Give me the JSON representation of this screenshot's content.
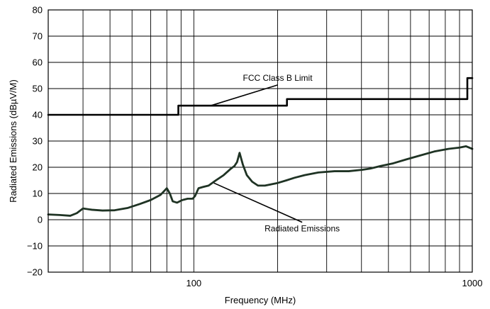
{
  "chart_data": {
    "type": "line",
    "xlabel": "Frequency (MHz)",
    "ylabel": "Radiated Emissions (dBµV/M)",
    "x_scale": "log",
    "xlim": [
      30,
      1000
    ],
    "ylim": [
      -20,
      80
    ],
    "x_tick_labels": [
      {
        "value": 100,
        "label": "100"
      },
      {
        "value": 1000,
        "label": "1000"
      }
    ],
    "x_minor_gridlines": [
      40,
      50,
      60,
      70,
      80,
      90,
      200,
      300,
      400,
      500,
      600,
      700,
      800,
      900
    ],
    "y_ticks": [
      -20,
      -10,
      0,
      10,
      20,
      30,
      40,
      50,
      60,
      70,
      80
    ],
    "grid": true,
    "series": [
      {
        "name": "FCC Class B Limit",
        "color": "#000000",
        "step": true,
        "x": [
          30,
          88,
          88,
          216,
          216,
          960,
          960,
          1000
        ],
        "y": [
          40,
          40,
          43.5,
          43.5,
          46,
          46,
          54,
          54
        ]
      },
      {
        "name": "Radiated Emissions",
        "color": "#1f3324",
        "x": [
          30,
          33,
          36,
          38,
          40,
          43,
          47,
          52,
          58,
          64,
          70,
          76,
          80,
          82,
          84,
          87,
          91,
          95,
          99,
          101,
          104,
          108,
          113,
          120,
          128,
          136,
          140,
          143,
          146,
          150,
          155,
          162,
          170,
          180,
          190,
          200,
          215,
          230,
          250,
          280,
          320,
          360,
          400,
          430,
          470,
          520,
          580,
          650,
          730,
          820,
          900,
          950,
          1000
        ],
        "y": [
          2,
          1.8,
          1.5,
          2.5,
          4.3,
          3.8,
          3.5,
          3.6,
          4.5,
          6,
          7.5,
          9.5,
          12,
          10,
          7,
          6.5,
          7.5,
          8,
          8,
          9,
          12,
          12.5,
          13,
          15,
          17,
          19.5,
          20.5,
          22,
          25.5,
          21,
          17,
          14.5,
          13,
          13,
          13.5,
          14,
          15,
          16,
          17,
          18,
          18.5,
          18.5,
          19,
          19.5,
          20.5,
          21.5,
          23,
          24.5,
          26,
          27,
          27.5,
          28,
          27
        ]
      }
    ],
    "annotations": [
      {
        "text": "FCC Class B Limit",
        "points_to": {
          "x": 115,
          "y": 43.5
        },
        "label_at": {
          "x": 200,
          "y": 53
        }
      },
      {
        "text": "Radiated Emissions",
        "points_to": {
          "x": 118,
          "y": 14
        },
        "label_at": {
          "x": 245,
          "y": -4.5
        }
      }
    ]
  }
}
